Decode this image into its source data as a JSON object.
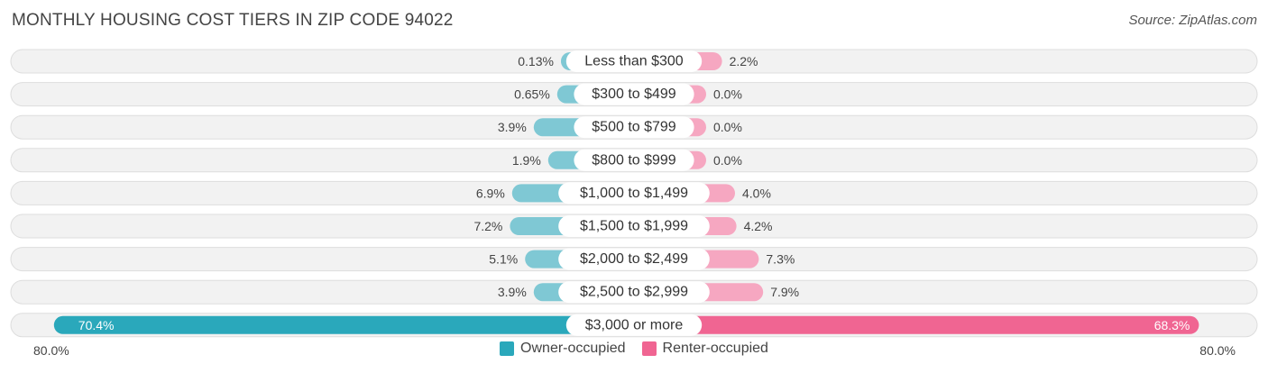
{
  "title": "MONTHLY HOUSING COST TIERS IN ZIP CODE 94022",
  "source": "Source: ZipAtlas.com",
  "colors": {
    "owner_bar": "#7fc8d4",
    "renter_bar": "#f6a7c1",
    "owner_bar_strong": "#2aa8bb",
    "renter_bar_strong": "#f06592",
    "row_bg": "#f2f2f2",
    "row_border": "#dddddd"
  },
  "axis": {
    "left_label": "80.0%",
    "right_label": "80.0%"
  },
  "legend": [
    {
      "label": "Owner-occupied",
      "color": "#2aa8bb"
    },
    {
      "label": "Renter-occupied",
      "color": "#f06592"
    }
  ],
  "chart_data": {
    "type": "bar",
    "orientation": "horizontal-diverging",
    "categories": [
      "Less than $300",
      "$300 to $499",
      "$500 to $799",
      "$800 to $999",
      "$1,000 to $1,499",
      "$1,500 to $1,999",
      "$2,000 to $2,499",
      "$2,500 to $2,999",
      "$3,000 or more"
    ],
    "series": [
      {
        "name": "Owner-occupied",
        "values": [
          0.13,
          0.65,
          3.9,
          1.9,
          6.9,
          7.2,
          5.1,
          3.9,
          70.4
        ],
        "labels": [
          "0.13%",
          "0.65%",
          "3.9%",
          "1.9%",
          "6.9%",
          "7.2%",
          "5.1%",
          "3.9%",
          "70.4%"
        ]
      },
      {
        "name": "Renter-occupied",
        "values": [
          2.2,
          0.0,
          0.0,
          0.0,
          4.0,
          4.2,
          7.3,
          7.9,
          68.3
        ],
        "labels": [
          "2.2%",
          "0.0%",
          "0.0%",
          "0.0%",
          "4.0%",
          "4.2%",
          "7.3%",
          "7.9%",
          "68.3%"
        ]
      }
    ],
    "xlim": [
      -80,
      80
    ],
    "legend_position": "bottom-center"
  }
}
